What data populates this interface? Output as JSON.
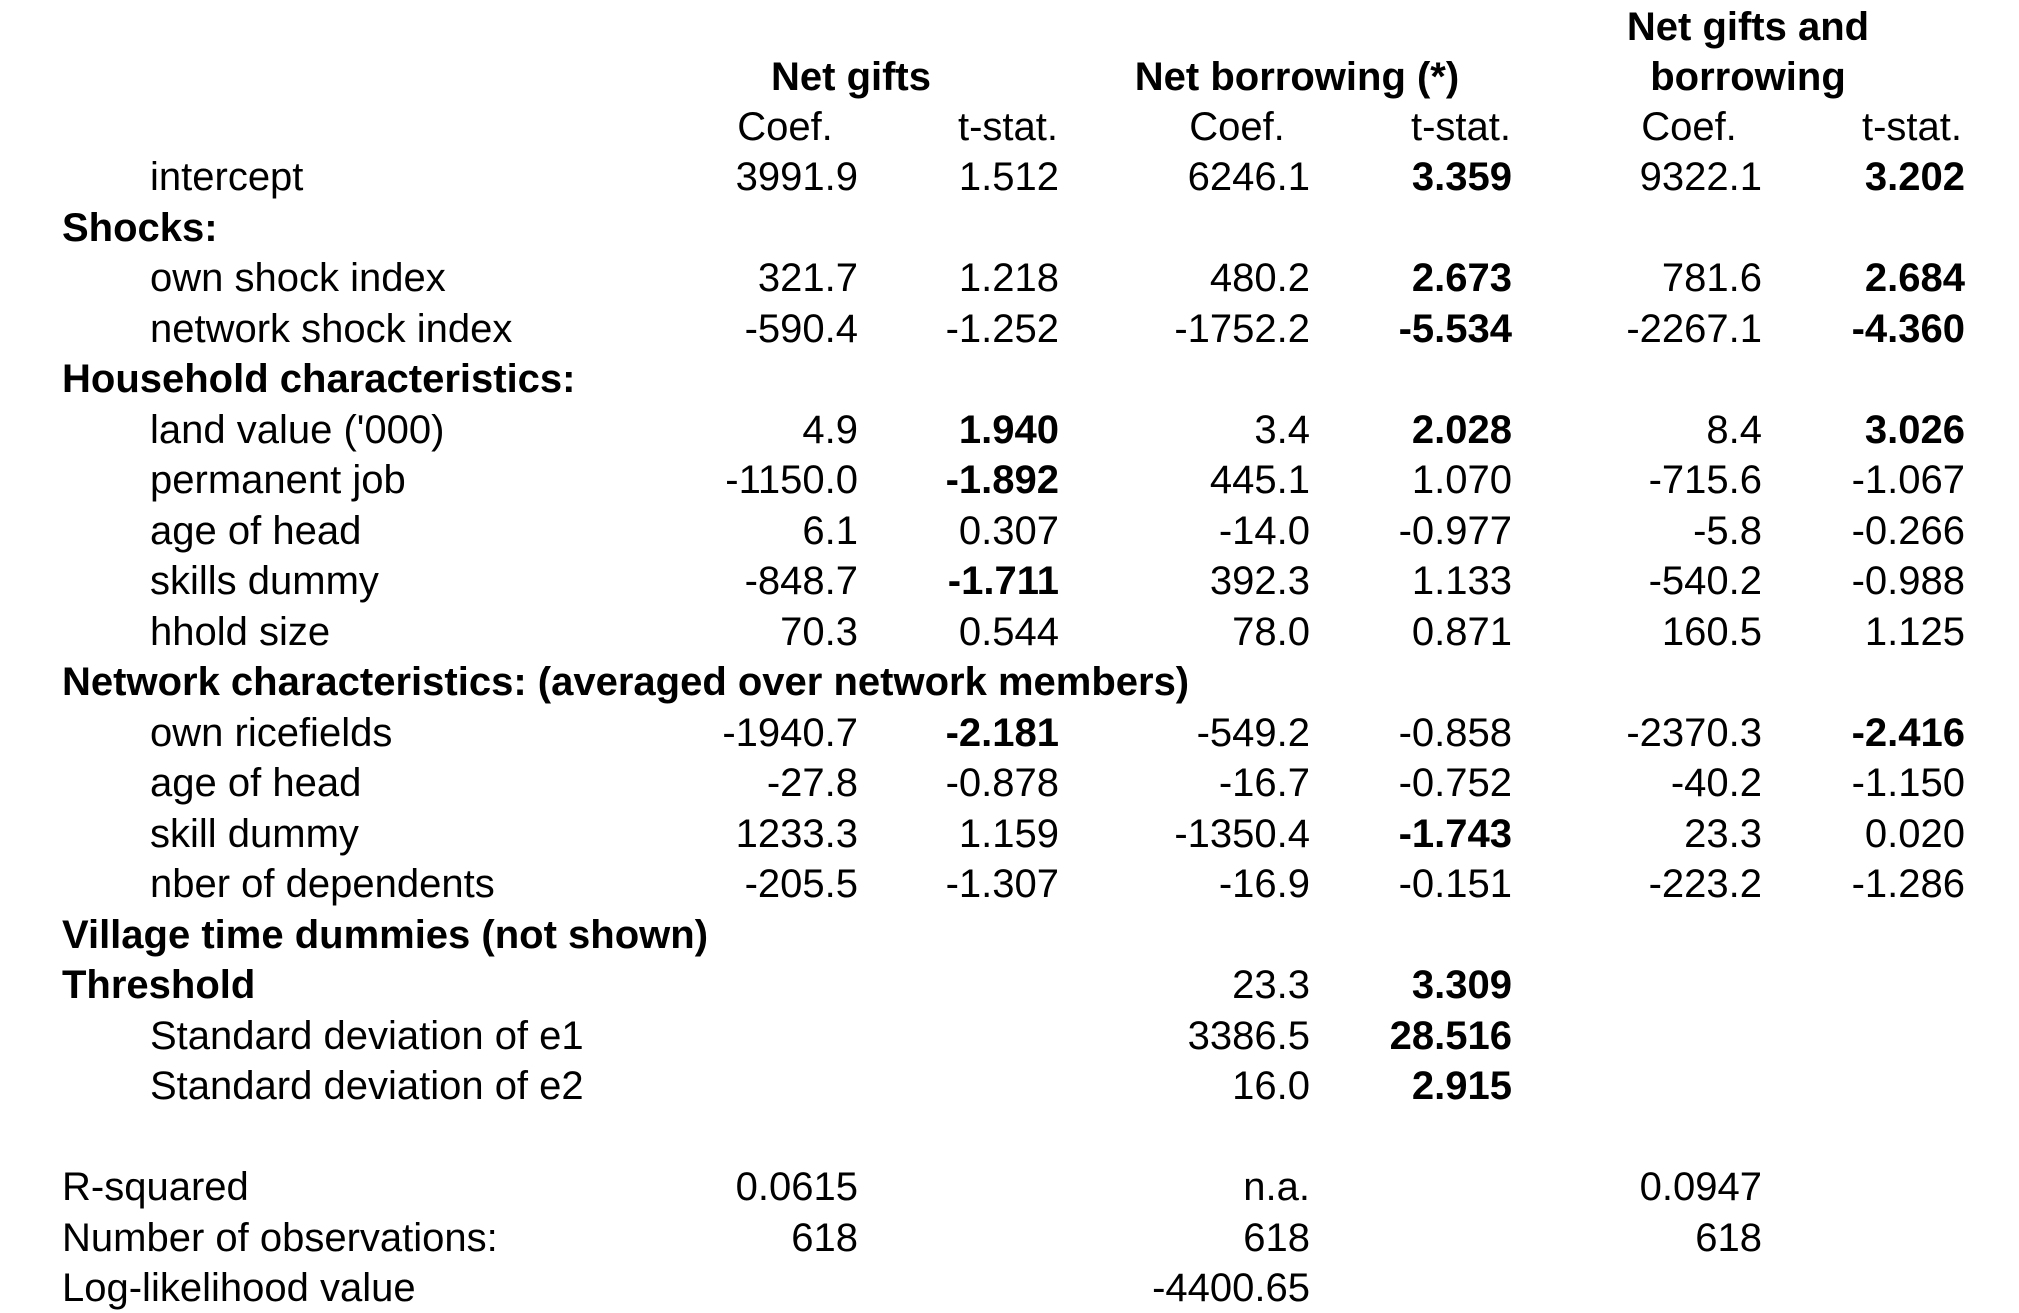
{
  "columns": {
    "groups": [
      {
        "title_line1": "",
        "title_line2": "Net gifts"
      },
      {
        "title_line1": "",
        "title_line2": "Net borrowing (*)"
      },
      {
        "title_line1": "Net gifts and",
        "title_line2": "borrowing"
      }
    ],
    "coef_label": "Coef.",
    "tstat_label": "t-stat."
  },
  "rows": [
    {
      "label": "intercept",
      "indent": true,
      "heading": false,
      "cells": [
        "3991.9",
        "1.512",
        "6246.1",
        "3.359",
        "9322.1",
        "3.202"
      ],
      "bold": [
        false,
        false,
        false,
        true,
        false,
        true
      ]
    },
    {
      "label": "Shocks:",
      "indent": false,
      "heading": true,
      "cells": [
        "",
        "",
        "",
        "",
        "",
        ""
      ],
      "bold": [
        false,
        false,
        false,
        false,
        false,
        false
      ]
    },
    {
      "label": "own shock index",
      "indent": true,
      "heading": false,
      "cells": [
        "321.7",
        "1.218",
        "480.2",
        "2.673",
        "781.6",
        "2.684"
      ],
      "bold": [
        false,
        false,
        false,
        true,
        false,
        true
      ]
    },
    {
      "label": "network shock index",
      "indent": true,
      "heading": false,
      "cells": [
        "-590.4",
        "-1.252",
        "-1752.2",
        "-5.534",
        "-2267.1",
        "-4.360"
      ],
      "bold": [
        false,
        false,
        false,
        true,
        false,
        true
      ]
    },
    {
      "label": "Household characteristics:",
      "indent": false,
      "heading": true,
      "cells": [
        "",
        "",
        "",
        "",
        "",
        ""
      ],
      "bold": [
        false,
        false,
        false,
        false,
        false,
        false
      ]
    },
    {
      "label": "land value ('000)",
      "indent": true,
      "heading": false,
      "cells": [
        "4.9",
        "1.940",
        "3.4",
        "2.028",
        "8.4",
        "3.026"
      ],
      "bold": [
        false,
        true,
        false,
        true,
        false,
        true
      ]
    },
    {
      "label": "permanent job",
      "indent": true,
      "heading": false,
      "cells": [
        "-1150.0",
        "-1.892",
        "445.1",
        "1.070",
        "-715.6",
        "-1.067"
      ],
      "bold": [
        false,
        true,
        false,
        false,
        false,
        false
      ]
    },
    {
      "label": "age of head",
      "indent": true,
      "heading": false,
      "cells": [
        "6.1",
        "0.307",
        "-14.0",
        "-0.977",
        "-5.8",
        "-0.266"
      ],
      "bold": [
        false,
        false,
        false,
        false,
        false,
        false
      ]
    },
    {
      "label": "skills dummy",
      "indent": true,
      "heading": false,
      "cells": [
        "-848.7",
        "-1.711",
        "392.3",
        "1.133",
        "-540.2",
        "-0.988"
      ],
      "bold": [
        false,
        true,
        false,
        false,
        false,
        false
      ]
    },
    {
      "label": "hhold size",
      "indent": true,
      "heading": false,
      "cells": [
        "70.3",
        "0.544",
        "78.0",
        "0.871",
        "160.5",
        "1.125"
      ],
      "bold": [
        false,
        false,
        false,
        false,
        false,
        false
      ]
    },
    {
      "label": "Network characteristics: (averaged over network members)",
      "indent": false,
      "heading": true,
      "cells": [
        "",
        "",
        "",
        "",
        "",
        ""
      ],
      "bold": [
        false,
        false,
        false,
        false,
        false,
        false
      ]
    },
    {
      "label": "own ricefields",
      "indent": true,
      "heading": false,
      "cells": [
        "-1940.7",
        "-2.181",
        "-549.2",
        "-0.858",
        "-2370.3",
        "-2.416"
      ],
      "bold": [
        false,
        true,
        false,
        false,
        false,
        true
      ]
    },
    {
      "label": "age of head",
      "indent": true,
      "heading": false,
      "cells": [
        "-27.8",
        "-0.878",
        "-16.7",
        "-0.752",
        "-40.2",
        "-1.150"
      ],
      "bold": [
        false,
        false,
        false,
        false,
        false,
        false
      ]
    },
    {
      "label": "skill dummy",
      "indent": true,
      "heading": false,
      "cells": [
        "1233.3",
        "1.159",
        "-1350.4",
        "-1.743",
        "23.3",
        "0.020"
      ],
      "bold": [
        false,
        false,
        false,
        true,
        false,
        false
      ]
    },
    {
      "label": "nber of dependents",
      "indent": true,
      "heading": false,
      "cells": [
        "-205.5",
        "-1.307",
        "-16.9",
        "-0.151",
        "-223.2",
        "-1.286"
      ],
      "bold": [
        false,
        false,
        false,
        false,
        false,
        false
      ]
    },
    {
      "label": "Village time dummies (not shown)",
      "indent": false,
      "heading": true,
      "cells": [
        "",
        "",
        "",
        "",
        "",
        ""
      ],
      "bold": [
        false,
        false,
        false,
        false,
        false,
        false
      ]
    },
    {
      "label": "Threshold",
      "indent": false,
      "heading": true,
      "cells": [
        "",
        "",
        "23.3",
        "3.309",
        "",
        ""
      ],
      "bold": [
        false,
        false,
        false,
        true,
        false,
        false
      ]
    },
    {
      "label": "Standard deviation of e1",
      "indent": true,
      "heading": false,
      "cells": [
        "",
        "",
        "3386.5",
        "28.516",
        "",
        ""
      ],
      "bold": [
        false,
        false,
        false,
        true,
        false,
        false
      ]
    },
    {
      "label": "Standard deviation of e2",
      "indent": true,
      "heading": false,
      "cells": [
        "",
        "",
        "16.0",
        "2.915",
        "",
        ""
      ],
      "bold": [
        false,
        false,
        false,
        true,
        false,
        false
      ]
    },
    {
      "label": "",
      "indent": false,
      "heading": false,
      "cells": [
        "",
        "",
        "",
        "",
        "",
        ""
      ],
      "bold": [
        false,
        false,
        false,
        false,
        false,
        false
      ]
    },
    {
      "label": "R-squared",
      "indent": false,
      "heading": false,
      "cells": [
        "0.0615",
        "",
        "n.a.",
        "",
        "0.0947",
        ""
      ],
      "bold": [
        false,
        false,
        false,
        false,
        false,
        false
      ]
    },
    {
      "label": "Number of observations:",
      "indent": false,
      "heading": false,
      "cells": [
        "618",
        "",
        "618",
        "",
        "618",
        ""
      ],
      "bold": [
        false,
        false,
        false,
        false,
        false,
        false
      ]
    },
    {
      "label": "Log-likelihood value",
      "indent": false,
      "heading": false,
      "cells": [
        "",
        "",
        "-4400.65",
        "",
        "",
        ""
      ],
      "bold": [
        false,
        false,
        false,
        false,
        false,
        false
      ]
    }
  ]
}
